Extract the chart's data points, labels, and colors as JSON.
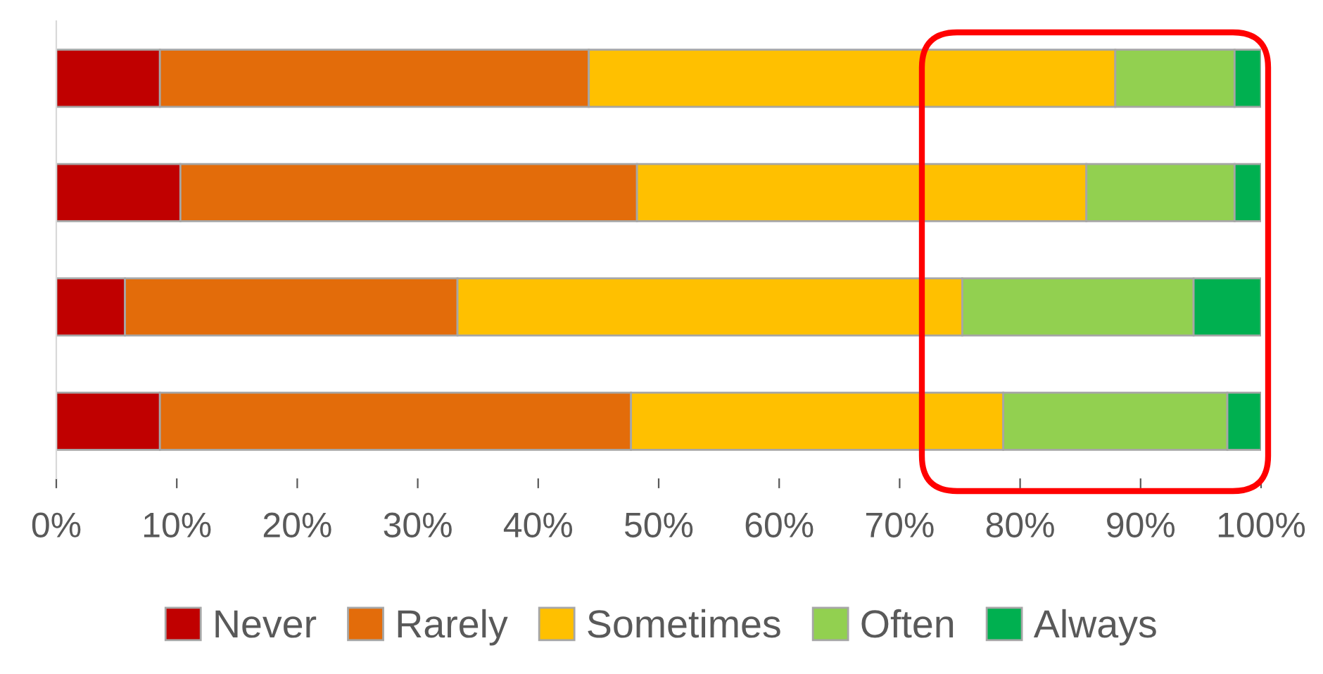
{
  "chart_data": {
    "type": "bar",
    "orientation": "horizontal",
    "stacked": true,
    "categories": [
      null,
      null,
      null,
      null
    ],
    "series": [
      {
        "name": "Never",
        "color": "#c00000",
        "values": [
          8.6,
          10.3,
          5.7,
          8.6
        ]
      },
      {
        "name": "Rarely",
        "color": "#e36c0a",
        "values": [
          35.6,
          37.9,
          27.6,
          39.1
        ]
      },
      {
        "name": "Sometimes",
        "color": "#ffc000",
        "values": [
          43.7,
          37.3,
          41.9,
          30.9
        ]
      },
      {
        "name": "Often",
        "color": "#92d050",
        "values": [
          9.9,
          12.3,
          19.2,
          18.6
        ]
      },
      {
        "name": "Always",
        "color": "#00b050",
        "values": [
          2.2,
          2.2,
          5.6,
          2.8
        ]
      }
    ],
    "xlim": [
      0,
      100
    ],
    "xticks": [
      {
        "value": 0,
        "label": "0%"
      },
      {
        "value": 10,
        "label": "10%"
      },
      {
        "value": 20,
        "label": "20%"
      },
      {
        "value": 30,
        "label": "30%"
      },
      {
        "value": 40,
        "label": "40%"
      },
      {
        "value": 50,
        "label": "50%"
      },
      {
        "value": 60,
        "label": "60%"
      },
      {
        "value": 70,
        "label": "70%"
      },
      {
        "value": 80,
        "label": "80%"
      },
      {
        "value": 90,
        "label": "90%"
      },
      {
        "value": 100,
        "label": "100%"
      }
    ],
    "grid": false,
    "legend": "bottom"
  }
}
